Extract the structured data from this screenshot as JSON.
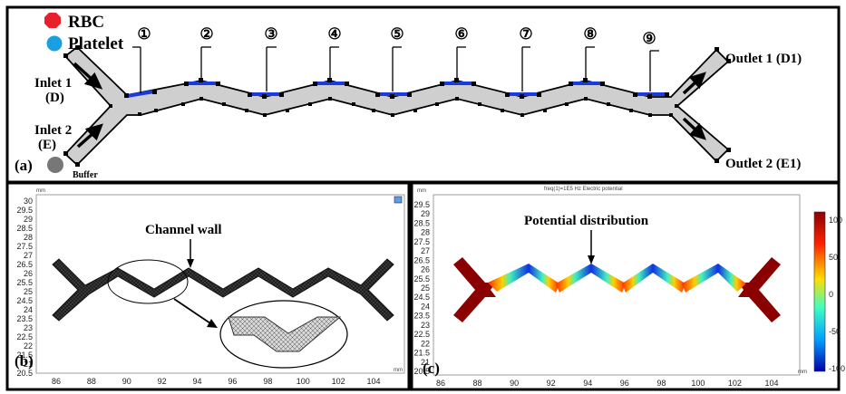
{
  "panel_a": {
    "legend": [
      {
        "label": "RBC",
        "color": "#e8202a"
      },
      {
        "label": "Platelet",
        "color": "#1a9fe0"
      }
    ],
    "buffer_label": "Buffer",
    "buffer_color": "#777777",
    "inlet1": [
      "Inlet 1",
      "(D)"
    ],
    "inlet2": [
      "Inlet 2",
      "(E)"
    ],
    "outlet1": "Outlet 1 (D1)",
    "outlet2": "Outlet 2 (E1)",
    "panel_label": "(a)",
    "electrodes": [
      "①",
      "②",
      "③",
      "④",
      "⑤",
      "⑥",
      "⑦",
      "⑧",
      "⑨"
    ]
  },
  "panel_b": {
    "annotation": "Channel wall",
    "panel_label": "(b)",
    "unit": "mm",
    "y_ticks": [
      "30",
      "29.5",
      "29",
      "28.5",
      "28",
      "27.5",
      "27",
      "26.5",
      "26",
      "25.5",
      "25",
      "24.5",
      "24",
      "23.5",
      "23",
      "22.5",
      "22",
      "21.5",
      "21",
      "20.5"
    ],
    "x_ticks": [
      "86",
      "88",
      "90",
      "92",
      "94",
      "96",
      "98",
      "100",
      "102",
      "104"
    ]
  },
  "panel_c": {
    "header": "freq(1)=1E5 Hz  Electric potential",
    "annotation": "Potential distribution",
    "panel_label": "(c)",
    "unit": "mm",
    "y_ticks": [
      "29.5",
      "29",
      "28.5",
      "28",
      "27.5",
      "27",
      "26.5",
      "26",
      "25.5",
      "25",
      "24.5",
      "24",
      "23.5",
      "23",
      "22.5",
      "22",
      "21.5",
      "21",
      "20.5"
    ],
    "x_ticks": [
      "86",
      "88",
      "90",
      "92",
      "94",
      "96",
      "98",
      "100",
      "102",
      "104"
    ],
    "colorbar_ticks": [
      "100",
      "50",
      "0",
      "-50",
      "-100"
    ],
    "colorbar_colors": [
      "#8b0000",
      "#ff2200",
      "#ffdd00",
      "#40ffc0",
      "#00a0ff",
      "#0000aa"
    ]
  }
}
